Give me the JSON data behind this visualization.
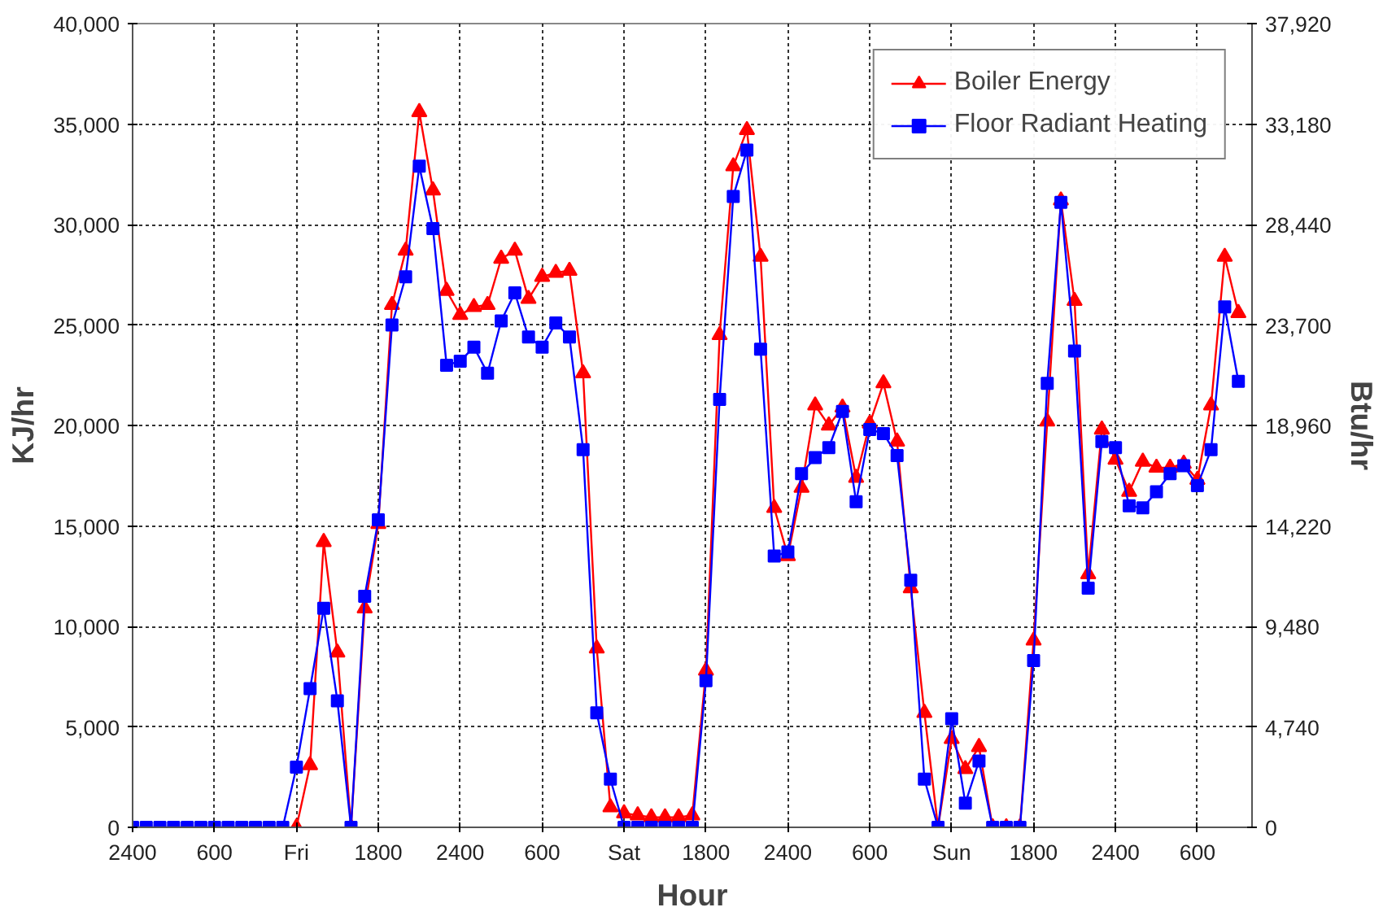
{
  "chart_data": {
    "type": "line",
    "xlabel": "Hour",
    "ylabel": "KJ/hr",
    "y2label": "Btu/hr",
    "categories": [
      "2400",
      null,
      null,
      null,
      null,
      null,
      "600",
      null,
      null,
      null,
      null,
      null,
      "Fri",
      null,
      null,
      null,
      null,
      null,
      "1800",
      null,
      null,
      null,
      null,
      null,
      "2400",
      null,
      null,
      null,
      null,
      null,
      "600",
      null,
      null,
      null,
      null,
      null,
      "Sat",
      null,
      null,
      null,
      null,
      null,
      "1800",
      null,
      null,
      null,
      null,
      null,
      "2400",
      null,
      null,
      null,
      null,
      null,
      "600",
      null,
      null,
      null,
      null,
      null,
      "Sun",
      null,
      null,
      null,
      null,
      null,
      "1800",
      null,
      null,
      null,
      null,
      null,
      "2400",
      null,
      null,
      null,
      null,
      null,
      "600",
      null,
      null,
      null
    ],
    "series": [
      {
        "name": "Boiler Energy",
        "color": "#ff0000",
        "marker": "triangle",
        "values": [
          null,
          null,
          null,
          null,
          null,
          null,
          null,
          null,
          null,
          null,
          null,
          null,
          0,
          3100,
          14200,
          8700,
          0,
          10900,
          15100,
          26000,
          28700,
          35600,
          31700,
          26700,
          25500,
          25900,
          26000,
          28300,
          28700,
          26300,
          27400,
          27600,
          27700,
          22600,
          8900,
          1000,
          700,
          600,
          500,
          500,
          500,
          600,
          7800,
          24500,
          32900,
          34700,
          28400,
          15900,
          13500,
          16900,
          21000,
          20000,
          20900,
          17400,
          20100,
          22100,
          19200,
          11900,
          5700,
          0,
          4400,
          2900,
          4000,
          0,
          0,
          0,
          9300,
          20200,
          31200,
          26200,
          12600,
          19800,
          18300,
          16700,
          18200,
          17900,
          17900,
          18100,
          17300,
          21000,
          28400,
          25600
        ]
      },
      {
        "name": "Floor Radiant Heating",
        "color": "#0000ff",
        "marker": "square",
        "values": [
          0,
          0,
          0,
          0,
          0,
          0,
          0,
          0,
          0,
          0,
          0,
          0,
          3000,
          6900,
          10900,
          6300,
          0,
          11500,
          15300,
          25000,
          27400,
          32900,
          29800,
          23000,
          23200,
          23900,
          22600,
          25200,
          26600,
          24400,
          23900,
          25100,
          24400,
          18800,
          5700,
          2400,
          0,
          0,
          0,
          0,
          0,
          0,
          7300,
          21300,
          31400,
          33700,
          23800,
          13500,
          13700,
          17600,
          18400,
          18900,
          20700,
          16200,
          19800,
          19600,
          18500,
          12300,
          2400,
          0,
          5400,
          1200,
          3300,
          0,
          0,
          0,
          8300,
          22100,
          31100,
          23700,
          11900,
          19200,
          18900,
          16000,
          15900,
          16700,
          17600,
          18000,
          17000,
          18800,
          25900,
          22200
        ]
      }
    ],
    "ylim": [
      0,
      40000
    ],
    "yticks": [
      0,
      {
        "value": 5000,
        "label": "5,000"
      },
      {
        "value": 10000,
        "label": "10,000"
      },
      {
        "value": 15000,
        "label": "15,000"
      },
      {
        "value": 20000,
        "label": "20,000"
      },
      {
        "value": 25000,
        "label": "25,000"
      },
      {
        "value": 30000,
        "label": "30,000"
      },
      {
        "value": 35000,
        "label": "35,000"
      },
      {
        "value": 40000,
        "label": "40,000"
      }
    ],
    "y2lim": [
      0,
      37920
    ],
    "y2ticks": [
      0,
      {
        "value": 4740,
        "label": "4,740"
      },
      {
        "value": 9480,
        "label": "9,480"
      },
      {
        "value": 14220,
        "label": "14,220"
      },
      {
        "value": 18960,
        "label": "18,960"
      },
      {
        "value": 23700,
        "label": "23,700"
      },
      {
        "value": 28440,
        "label": "28,440"
      },
      {
        "value": 33180,
        "label": "33,180"
      },
      {
        "value": 37920,
        "label": "37,920"
      }
    ],
    "grid": true,
    "legend": "top right",
    "line_style": "solid"
  }
}
